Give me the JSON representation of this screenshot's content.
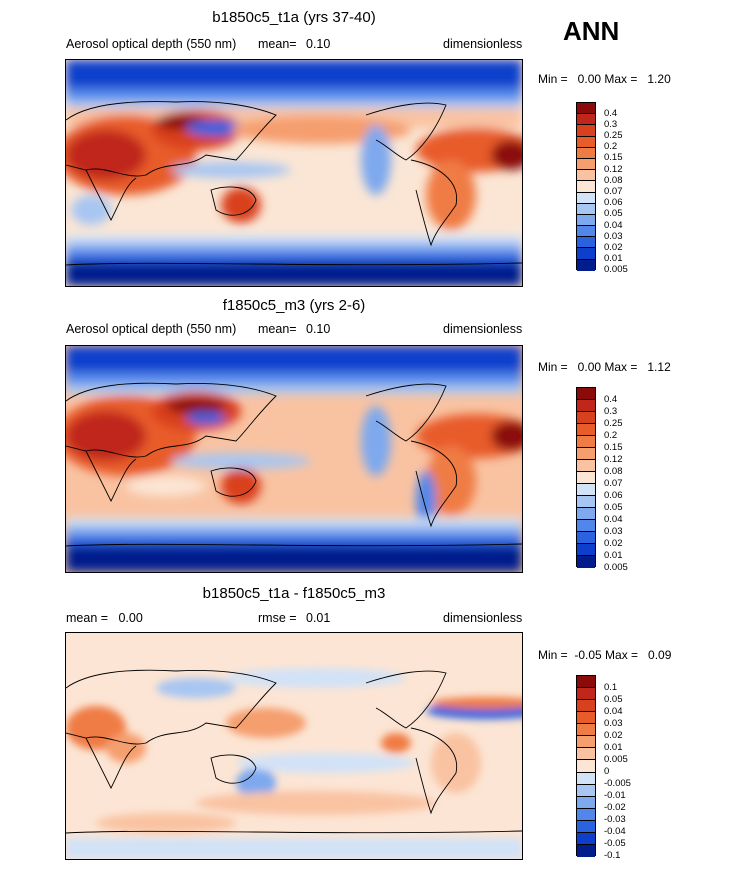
{
  "season": "ANN",
  "panels": [
    {
      "title": "b1850c5_t1a (yrs 37-40)",
      "left_label": "Aerosol optical depth (550 nm)",
      "mean_label": "mean=",
      "mean_value": "0.10",
      "units": "dimensionless",
      "minmax": "Min =   0.00 Max =   1.20"
    },
    {
      "title": "f1850c5_m3 (yrs 2-6)",
      "left_label": "Aerosol optical depth (550 nm)",
      "mean_label": "mean=",
      "mean_value": "0.10",
      "units": "dimensionless",
      "minmax": "Min =   0.00 Max =   1.12"
    },
    {
      "title": "b1850c5_t1a - f1850c5_m3",
      "left_label": "mean =   0.00",
      "mean_label": "rmse =",
      "mean_value": "0.01",
      "units": "dimensionless",
      "minmax": "Min =  -0.05 Max =   0.09"
    }
  ],
  "chart_data": [
    {
      "type": "heatmap",
      "title": "b1850c5_t1a (yrs 37-40)",
      "variable": "Aerosol optical depth (550 nm)",
      "units": "dimensionless",
      "mean": 0.1,
      "min": 0.0,
      "max": 1.2,
      "levels": [
        "0.4",
        "0.3",
        "0.25",
        "0.2",
        "0.15",
        "0.12",
        "0.08",
        "0.07",
        "0.06",
        "0.05",
        "0.04",
        "0.03",
        "0.02",
        "0.01",
        "0.005"
      ]
    },
    {
      "type": "heatmap",
      "title": "f1850c5_m3 (yrs 2-6)",
      "variable": "Aerosol optical depth (550 nm)",
      "units": "dimensionless",
      "mean": 0.1,
      "min": 0.0,
      "max": 1.12,
      "levels": [
        "0.4",
        "0.3",
        "0.25",
        "0.2",
        "0.15",
        "0.12",
        "0.08",
        "0.07",
        "0.06",
        "0.05",
        "0.04",
        "0.03",
        "0.02",
        "0.01",
        "0.005"
      ]
    },
    {
      "type": "heatmap",
      "title": "b1850c5_t1a - f1850c5_m3",
      "units": "dimensionless",
      "mean": 0.0,
      "rmse": 0.01,
      "min": -0.05,
      "max": 0.09,
      "levels": [
        "0.1",
        "0.05",
        "0.04",
        "0.03",
        "0.02",
        "0.01",
        "0.005",
        "0",
        "-0.005",
        "-0.01",
        "-0.02",
        "-0.03",
        "-0.04",
        "-0.05",
        "-0.1"
      ]
    }
  ],
  "colors": {
    "scale": [
      "#8b0a0a",
      "#c0261a",
      "#d9401e",
      "#e85c2a",
      "#f07c45",
      "#f59e6e",
      "#f9c3a2",
      "#fbe6d5",
      "#d2e2f7",
      "#a7c6f2",
      "#7ea9ee",
      "#5187ea",
      "#2a62e0",
      "#0d3fcc",
      "#031c8c"
    ],
    "diff_bg": "#fce5d4"
  }
}
